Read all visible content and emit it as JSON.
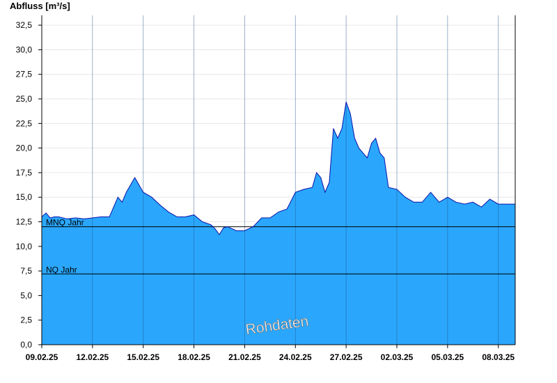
{
  "chart_data": {
    "type": "area",
    "ylabel": "Abfluss [m³/s]",
    "ylim": [
      0,
      33.5
    ],
    "yticks": [
      0,
      2.5,
      5,
      7.5,
      10,
      12.5,
      15,
      17.5,
      20,
      22.5,
      25,
      27.5,
      30,
      32.5
    ],
    "ytick_labels": [
      "0,0",
      "2,5",
      "5,0",
      "7,5",
      "10,0",
      "12,5",
      "15,0",
      "17,5",
      "20,0",
      "22,5",
      "25,0",
      "27,5",
      "30,0",
      "32,5"
    ],
    "xlim": [
      "2025-02-09",
      "2025-03-08"
    ],
    "xticks": [
      "2025-02-09",
      "2025-02-12",
      "2025-02-15",
      "2025-02-18",
      "2025-02-21",
      "2025-02-24",
      "2025-02-27",
      "2025-03-02",
      "2025-03-05",
      "2025-03-08"
    ],
    "xtick_labels": [
      "09.02.25",
      "12.02.25",
      "15.02.25",
      "18.02.25",
      "21.02.25",
      "24.02.25",
      "27.02.25",
      "02.03.25",
      "05.03.25",
      "08.03.25"
    ],
    "grid": true,
    "series": [
      {
        "x": [
          "2025-02-09 00:00",
          "2025-02-09 06:00",
          "2025-02-09 12:00",
          "2025-02-09 18:00",
          "2025-02-10 00:00",
          "2025-02-10 12:00",
          "2025-02-11 00:00",
          "2025-02-11 12:00",
          "2025-02-12 00:00",
          "2025-02-12 12:00",
          "2025-02-13 00:00",
          "2025-02-13 06:00",
          "2025-02-13 12:00",
          "2025-02-13 18:00",
          "2025-02-14 00:00",
          "2025-02-14 12:00",
          "2025-02-15 00:00",
          "2025-02-15 12:00",
          "2025-02-16 00:00",
          "2025-02-16 12:00",
          "2025-02-17 00:00",
          "2025-02-17 12:00",
          "2025-02-18 00:00",
          "2025-02-18 12:00",
          "2025-02-19 00:00",
          "2025-02-19 06:00",
          "2025-02-19 12:00",
          "2025-02-19 18:00",
          "2025-02-20 00:00",
          "2025-02-20 12:00",
          "2025-02-21 00:00",
          "2025-02-21 12:00",
          "2025-02-22 00:00",
          "2025-02-22 12:00",
          "2025-02-23 00:00",
          "2025-02-23 12:00",
          "2025-02-24 00:00",
          "2025-02-24 12:00",
          "2025-02-25 00:00",
          "2025-02-25 06:00",
          "2025-02-25 12:00",
          "2025-02-25 18:00",
          "2025-02-26 00:00",
          "2025-02-26 06:00",
          "2025-02-26 12:00",
          "2025-02-26 18:00",
          "2025-02-27 00:00",
          "2025-02-27 06:00",
          "2025-02-27 12:00",
          "2025-02-27 18:00",
          "2025-02-28 00:00",
          "2025-02-28 06:00",
          "2025-02-28 12:00",
          "2025-02-28 18:00",
          "2025-03-01 00:00",
          "2025-03-01 06:00",
          "2025-03-01 12:00",
          "2025-03-02 00:00",
          "2025-03-02 12:00",
          "2025-03-03 00:00",
          "2025-03-03 12:00",
          "2025-03-04 00:00",
          "2025-03-04 12:00",
          "2025-03-05 00:00",
          "2025-03-05 12:00",
          "2025-03-06 00:00",
          "2025-03-06 12:00",
          "2025-03-07 00:00",
          "2025-03-07 12:00",
          "2025-03-08 00:00",
          "2025-03-08 23:00"
        ],
        "values": [
          13.0,
          13.4,
          12.9,
          13.0,
          13.0,
          12.8,
          12.9,
          12.8,
          12.9,
          13.0,
          13.0,
          14.0,
          15.0,
          14.5,
          15.5,
          17.0,
          15.5,
          15.0,
          14.2,
          13.5,
          13.0,
          13.0,
          13.2,
          12.5,
          12.2,
          11.8,
          11.2,
          11.9,
          12.0,
          11.6,
          11.6,
          12.0,
          12.9,
          12.9,
          13.5,
          13.8,
          15.5,
          15.8,
          16.0,
          17.5,
          17.0,
          15.5,
          16.5,
          22.0,
          21.0,
          22.0,
          24.7,
          23.5,
          21.0,
          20.0,
          19.5,
          19.0,
          20.5,
          21.0,
          19.5,
          19.0,
          16.0,
          15.8,
          15.0,
          14.5,
          14.5,
          15.5,
          14.5,
          15.0,
          14.5,
          14.3,
          14.5,
          14.0,
          14.8,
          14.3,
          14.3
        ]
      }
    ],
    "reference_lines": [
      {
        "label": "MNQ Jahr",
        "value": 12.0
      },
      {
        "label": "NQ Jahr",
        "value": 7.2
      }
    ],
    "fill_color": "#2aa7fc",
    "line_color": "#0a10a8",
    "watermark": "Rohdaten"
  }
}
